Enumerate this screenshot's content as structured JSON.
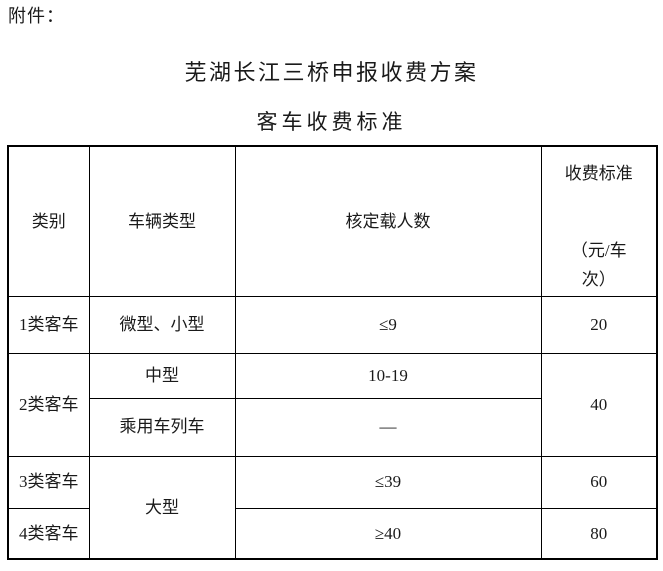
{
  "page": {
    "attachment_label": "附件：",
    "title": "芜湖长江三桥申报收费方案",
    "subtitle": "客车收费标准"
  },
  "colors": {
    "text": "#1a1a1a",
    "border": "#000000",
    "background": "#ffffff"
  },
  "table": {
    "headers": {
      "category": "类别",
      "vehicle_type": "车辆类型",
      "capacity": "核定载人数",
      "fee_lines": [
        "收费标准",
        "（元/车",
        "次）"
      ]
    },
    "rows": [
      {
        "category": "1类客车",
        "vehicle_type": "微型、小型",
        "capacity": "≤9",
        "fee": "20"
      },
      {
        "category": "2类客车",
        "vehicle_type": "中型",
        "capacity": "10-19",
        "fee": "40"
      },
      {
        "vehicle_type": "乘用车列车",
        "capacity": "—"
      },
      {
        "category": "3类客车",
        "vehicle_type": "大型",
        "capacity": "≤39",
        "fee": "60"
      },
      {
        "category": "4类客车",
        "capacity": "≥40",
        "fee": "80"
      }
    ]
  }
}
